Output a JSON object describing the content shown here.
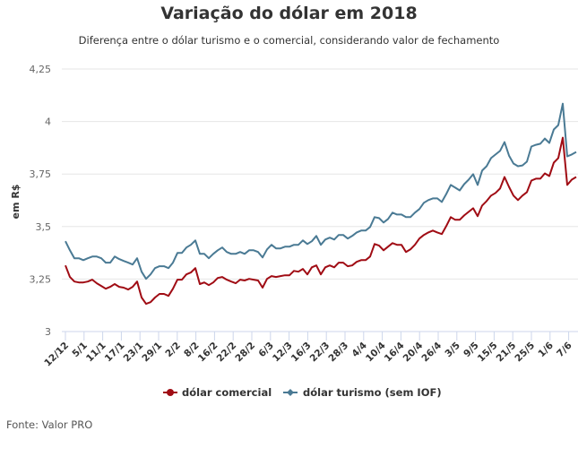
{
  "chart_data": {
    "type": "line",
    "title": "Variação do dólar em 2018",
    "subtitle": "Diferença entre o dólar turismo e o comercial, considerando valor de fechamento",
    "xlabel": "",
    "ylabel": "em R$",
    "ylim": [
      3,
      4.25
    ],
    "yticks": [
      "3",
      "3,25",
      "3,5",
      "3,75",
      "4",
      "4,25"
    ],
    "ytick_values": [
      3,
      3.25,
      3.5,
      3.75,
      4,
      4.25
    ],
    "xtick_labels": [
      "12/12",
      "5/1",
      "11/1",
      "17/1",
      "23/1",
      "29/1",
      "2/2",
      "8/2",
      "16/2",
      "22/2",
      "28/2",
      "6/3",
      "12/3",
      "16/3",
      "22/3",
      "28/3",
      "4/4",
      "10/4",
      "16/4",
      "20/4",
      "26/4",
      "3/5",
      "9/5",
      "15/5",
      "21/5",
      "25/5",
      "1/6",
      "7/6"
    ],
    "grid": true,
    "legend_position": "bottom",
    "series": [
      {
        "name": "dólar comercial",
        "color": "#a00c14",
        "values": [
          3.315,
          3.26,
          3.238,
          3.234,
          3.234,
          3.238,
          3.247,
          3.23,
          3.217,
          3.204,
          3.213,
          3.226,
          3.213,
          3.209,
          3.2,
          3.213,
          3.238,
          3.162,
          3.132,
          3.14,
          3.162,
          3.179,
          3.179,
          3.17,
          3.204,
          3.247,
          3.247,
          3.272,
          3.281,
          3.302,
          3.226,
          3.234,
          3.221,
          3.234,
          3.255,
          3.26,
          3.247,
          3.238,
          3.23,
          3.247,
          3.243,
          3.251,
          3.247,
          3.243,
          3.209,
          3.251,
          3.264,
          3.26,
          3.264,
          3.268,
          3.268,
          3.289,
          3.285,
          3.298,
          3.272,
          3.306,
          3.315,
          3.272,
          3.306,
          3.315,
          3.306,
          3.328,
          3.328,
          3.311,
          3.315,
          3.332,
          3.34,
          3.34,
          3.357,
          3.417,
          3.409,
          3.387,
          3.404,
          3.421,
          3.413,
          3.413,
          3.379,
          3.391,
          3.413,
          3.443,
          3.46,
          3.472,
          3.481,
          3.472,
          3.464,
          3.502,
          3.545,
          3.532,
          3.532,
          3.553,
          3.57,
          3.587,
          3.549,
          3.6,
          3.621,
          3.647,
          3.66,
          3.681,
          3.736,
          3.689,
          3.647,
          3.626,
          3.647,
          3.664,
          3.719,
          3.728,
          3.728,
          3.753,
          3.74,
          3.804,
          3.826,
          3.923,
          3.698,
          3.723,
          3.736
        ]
      },
      {
        "name": "dólar turismo (sem IOF)",
        "color": "#4a7a94",
        "values": [
          3.43,
          3.387,
          3.349,
          3.349,
          3.34,
          3.349,
          3.357,
          3.357,
          3.349,
          3.328,
          3.328,
          3.357,
          3.345,
          3.336,
          3.328,
          3.319,
          3.349,
          3.285,
          3.251,
          3.272,
          3.302,
          3.311,
          3.311,
          3.302,
          3.328,
          3.374,
          3.374,
          3.4,
          3.413,
          3.434,
          3.37,
          3.37,
          3.349,
          3.37,
          3.387,
          3.4,
          3.379,
          3.37,
          3.37,
          3.379,
          3.37,
          3.387,
          3.387,
          3.379,
          3.353,
          3.391,
          3.413,
          3.396,
          3.396,
          3.404,
          3.404,
          3.413,
          3.413,
          3.434,
          3.417,
          3.43,
          3.455,
          3.413,
          3.438,
          3.447,
          3.438,
          3.46,
          3.46,
          3.443,
          3.455,
          3.472,
          3.481,
          3.481,
          3.498,
          3.545,
          3.54,
          3.519,
          3.536,
          3.566,
          3.557,
          3.557,
          3.545,
          3.545,
          3.566,
          3.583,
          3.613,
          3.626,
          3.634,
          3.634,
          3.617,
          3.655,
          3.698,
          3.685,
          3.672,
          3.702,
          3.723,
          3.749,
          3.698,
          3.766,
          3.787,
          3.826,
          3.843,
          3.86,
          3.902,
          3.838,
          3.8,
          3.787,
          3.791,
          3.809,
          3.881,
          3.889,
          3.894,
          3.919,
          3.898,
          3.962,
          3.983,
          4.085,
          3.834,
          3.843,
          3.855
        ]
      }
    ]
  },
  "footer": "Fonte: Valor PRO"
}
